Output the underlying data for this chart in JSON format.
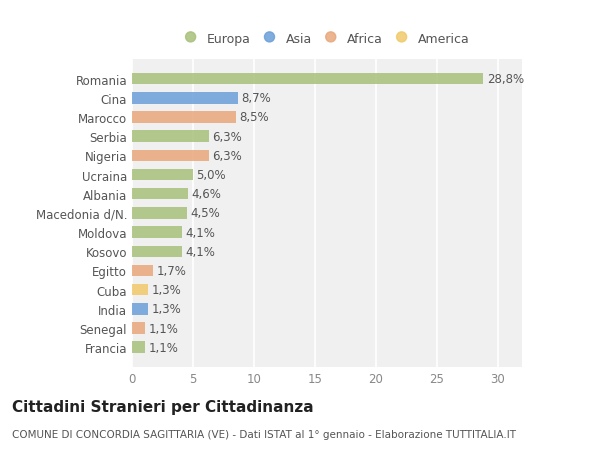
{
  "categories": [
    "Romania",
    "Cina",
    "Marocco",
    "Serbia",
    "Nigeria",
    "Ucraina",
    "Albania",
    "Macedonia d/N.",
    "Moldova",
    "Kosovo",
    "Egitto",
    "Cuba",
    "India",
    "Senegal",
    "Francia"
  ],
  "values": [
    28.8,
    8.7,
    8.5,
    6.3,
    6.3,
    5.0,
    4.6,
    4.5,
    4.1,
    4.1,
    1.7,
    1.3,
    1.3,
    1.1,
    1.1
  ],
  "labels": [
    "28,8%",
    "8,7%",
    "8,5%",
    "6,3%",
    "6,3%",
    "5,0%",
    "4,6%",
    "4,5%",
    "4,1%",
    "4,1%",
    "1,7%",
    "1,3%",
    "1,3%",
    "1,1%",
    "1,1%"
  ],
  "continents": [
    "Europa",
    "Asia",
    "Africa",
    "Europa",
    "Africa",
    "Europa",
    "Europa",
    "Europa",
    "Europa",
    "Europa",
    "Africa",
    "America",
    "Asia",
    "Africa",
    "Europa"
  ],
  "colors": {
    "Europa": "#a8c07a",
    "Asia": "#6a9fd8",
    "Africa": "#e8a87c",
    "America": "#f0c96a"
  },
  "legend": [
    "Europa",
    "Asia",
    "Africa",
    "America"
  ],
  "legend_colors": [
    "#a8c07a",
    "#6a9fd8",
    "#e8a87c",
    "#f0c96a"
  ],
  "title": "Cittadini Stranieri per Cittadinanza",
  "subtitle": "COMUNE DI CONCORDIA SAGITTARIA (VE) - Dati ISTAT al 1° gennaio - Elaborazione TUTTITALIA.IT",
  "xlim": [
    0,
    32
  ],
  "xticks": [
    0,
    5,
    10,
    15,
    20,
    25,
    30
  ],
  "background_color": "#ffffff",
  "plot_background": "#f0f0f0",
  "grid_color": "#ffffff",
  "bar_height": 0.6,
  "label_fontsize": 8.5,
  "tick_fontsize": 8.5,
  "title_fontsize": 11,
  "subtitle_fontsize": 7.5
}
